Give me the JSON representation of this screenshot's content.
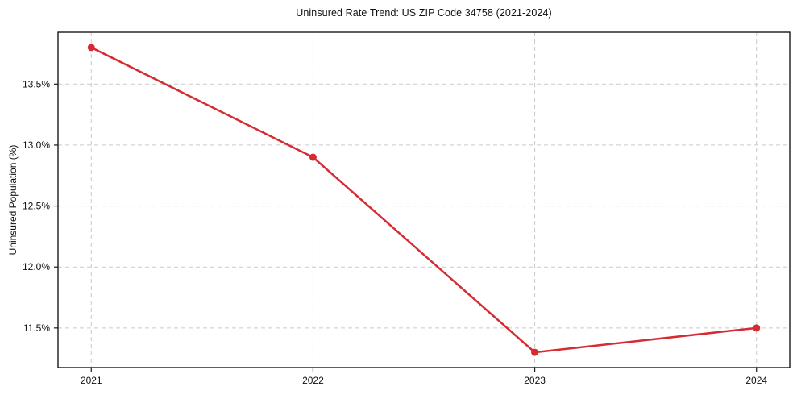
{
  "chart": {
    "title": "Uninsured Rate Trend: US ZIP Code 34758 (2021-2024)",
    "ylabel": "Uninsured Population (%)"
  },
  "chart_data": {
    "type": "line",
    "title": "Uninsured Rate Trend: US ZIP Code 34758 (2021-2024)",
    "xlabel": "",
    "ylabel": "Uninsured Population (%)",
    "x": [
      2021,
      2022,
      2023,
      2024
    ],
    "categories": [
      "2021",
      "2022",
      "2023",
      "2024"
    ],
    "series": [
      {
        "name": "Uninsured rate",
        "values": [
          13.8,
          12.9,
          11.3,
          11.5
        ]
      }
    ],
    "xticks": [
      2021,
      2022,
      2023,
      2024
    ],
    "xtick_labels": [
      "2021",
      "2022",
      "2023",
      "2024"
    ],
    "yticks": [
      11.5,
      12.0,
      12.5,
      13.0,
      13.5
    ],
    "ytick_labels": [
      "11.5%",
      "12.0%",
      "12.5%",
      "13.0%",
      "13.5%"
    ],
    "xlim": [
      2020.85,
      2024.15
    ],
    "ylim": [
      11.175,
      13.925
    ],
    "grid": true,
    "grid_style": "dashed",
    "legend": false,
    "marker": "circle",
    "colors": {
      "line": "#d62b33",
      "marker": "#d62b33",
      "grid": "#c9c9c9",
      "spine": "#1a1a1a",
      "tick": "#1a1a1a",
      "text": "#111111"
    }
  }
}
